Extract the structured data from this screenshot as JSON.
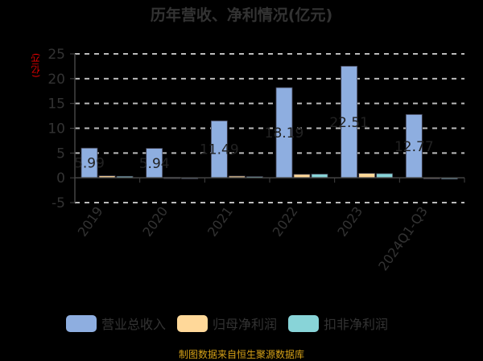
{
  "chart_data": {
    "type": "bar",
    "title": "历年营收、净利情况(亿元)",
    "ylabel": "(亿元)",
    "xlabel": "",
    "ylim": [
      -5,
      25
    ],
    "yticks": [
      25,
      20,
      15,
      10,
      5,
      0,
      -5
    ],
    "grid": true,
    "legend_position": "bottom",
    "categories": [
      "2019",
      "2020",
      "2021",
      "2022",
      "2023",
      "2024Q1-Q3"
    ],
    "series": [
      {
        "name": "营业总收入",
        "color": "#8eaee0",
        "values": [
          5.99,
          5.94,
          11.49,
          18.19,
          22.51,
          12.77
        ],
        "labels": [
          "5.99",
          "5.94",
          "11.49",
          "18.19",
          "22.51",
          "12.77"
        ]
      },
      {
        "name": "归母净利润",
        "color": "#ffd899",
        "values": [
          0.4,
          0.1,
          0.35,
          0.7,
          0.9,
          0.05
        ]
      },
      {
        "name": "扣非净利润",
        "color": "#88d4d8",
        "values": [
          0.3,
          0.05,
          0.25,
          0.75,
          0.85,
          -0.1
        ]
      }
    ]
  },
  "title": "历年营收、净利情况(亿元)",
  "unit_label": "(亿元)",
  "legend": [
    {
      "label": "营业总收入",
      "color": "#8eaee0"
    },
    {
      "label": "归母净利润",
      "color": "#ffd899"
    },
    {
      "label": "扣非净利润",
      "color": "#88d4d8"
    }
  ],
  "source": "制图数据来自恒生聚源数据库"
}
